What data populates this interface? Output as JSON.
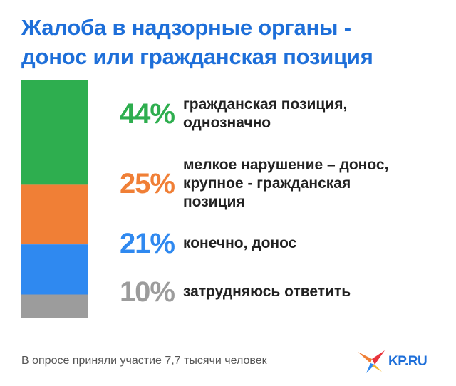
{
  "title_lines": [
    "Жалоба в надзорные органы -",
    "донос или гражданская позиция"
  ],
  "chart_data": {
    "type": "bar",
    "stacked": true,
    "categories": [
      "гражданская позиция, однозначно",
      "мелкое нарушение – донос, крупное - гражданская позиция",
      "конечно, донос",
      "затрудняюсь ответить"
    ],
    "values": [
      44,
      25,
      21,
      10
    ],
    "value_labels": [
      "44%",
      "25%",
      "21%",
      "10%"
    ],
    "label_lines": [
      [
        "гражданская позиция,",
        "однозначно"
      ],
      [
        "мелкое нарушение – донос,",
        "крупное - гражданская",
        "позиция"
      ],
      [
        "конечно, донос"
      ],
      [
        "затрудняюсь ответить"
      ]
    ],
    "colors": [
      "#2eae4f",
      "#f07f36",
      "#2f89f0",
      "#9c9c9c"
    ]
  },
  "footer": {
    "note": "В опросе приняли участие 7,7 тысячи человек",
    "logo_text": "KP.RU"
  },
  "icons": {
    "logo": "kp-star-icon"
  }
}
